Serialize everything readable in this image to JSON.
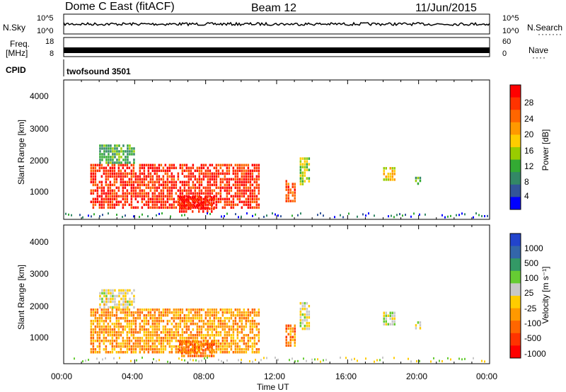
{
  "header": {
    "station": "Dome C East (fitACF)",
    "beam": "Beam 12",
    "date": "11/Jun/2015"
  },
  "top_panels": {
    "nsky_label": "N.Sky",
    "nsearch_label": "N.Search",
    "noise_ticks": [
      "10^5",
      "10^0"
    ],
    "freq_label": "Freq.",
    "freq_unit": "[MHz]",
    "freq_ticks": [
      "18",
      "8"
    ],
    "nave_label": "Nave",
    "nave_ticks": [
      "60",
      "0"
    ],
    "cpid_label": "CPID",
    "cpid_value": "twofsound 3501"
  },
  "axes": {
    "y_label": "Slant Range [km]",
    "y_ticks": [
      "4000",
      "3000",
      "2000",
      "1000"
    ],
    "x_label": "Time UT",
    "x_ticks": [
      "00:00",
      "04:00",
      "08:00",
      "12:00",
      "16:00",
      "20:00",
      "00:00"
    ]
  },
  "power_scale": {
    "label": "Power [dB]",
    "ticks": [
      "28",
      "24",
      "20",
      "16",
      "12",
      "8",
      "4"
    ],
    "colors": [
      "#ff0000",
      "#ff3300",
      "#ff6600",
      "#ff9900",
      "#ffcc00",
      "#99cc00",
      "#33aa33",
      "#338866",
      "#335599",
      "#0000ff"
    ]
  },
  "velocity_scale": {
    "label": "Velocity [m s⁻¹]",
    "ticks": [
      "1000",
      "500",
      "100",
      "25",
      "-25",
      "-100",
      "-500",
      "-1000"
    ],
    "colors": [
      "#2244cc",
      "#3366aa",
      "#339966",
      "#66cc33",
      "#c8c8c8",
      "#ffcc00",
      "#ff9900",
      "#ff6600",
      "#ff3300",
      "#ff0000"
    ]
  },
  "chart_data": {
    "type": "heatmap",
    "x_range_hours": [
      0,
      24
    ],
    "y_range_km": [
      180,
      4500
    ],
    "power_db_range": [
      0,
      30
    ],
    "velocity_range": [
      -1000,
      1000
    ],
    "echo_regions": [
      {
        "t_start": 1.5,
        "t_end": 11.0,
        "range_start": 500,
        "range_end": 1900,
        "power_db": 26,
        "velocity": -300
      },
      {
        "t_start": 2.0,
        "t_end": 4.0,
        "range_start": 1900,
        "range_end": 2500,
        "power_db": 10,
        "velocity": 25
      },
      {
        "t_start": 6.5,
        "t_end": 8.5,
        "range_start": 400,
        "range_end": 900,
        "power_db": 28,
        "velocity": -500
      },
      {
        "t_start": 12.5,
        "t_end": 13.0,
        "range_start": 700,
        "range_end": 1400,
        "power_db": 24,
        "velocity": -400
      },
      {
        "t_start": 13.3,
        "t_end": 13.8,
        "range_start": 1300,
        "range_end": 2100,
        "power_db": 14,
        "velocity": 100
      },
      {
        "t_start": 18.0,
        "t_end": 18.7,
        "range_start": 1400,
        "range_end": 1800,
        "power_db": 16,
        "velocity": 150
      },
      {
        "t_start": 19.8,
        "t_end": 20.1,
        "range_start": 1300,
        "range_end": 1500,
        "power_db": 10,
        "velocity": 50
      }
    ]
  }
}
